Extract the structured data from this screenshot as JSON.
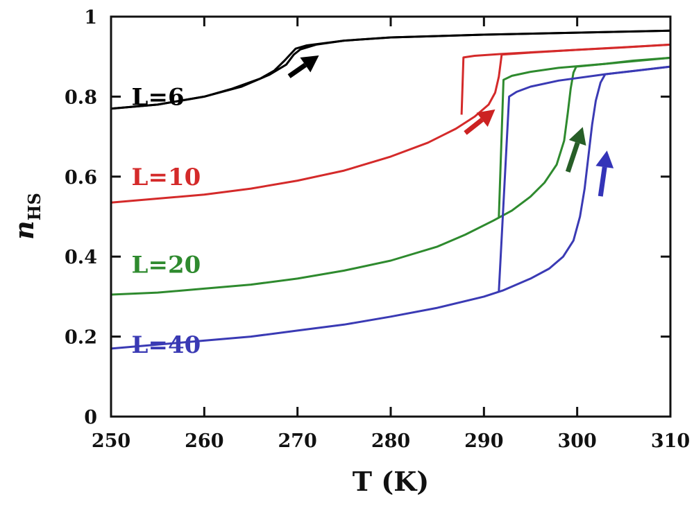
{
  "chart_data": {
    "type": "line",
    "title": "",
    "xlabel": "T (K)",
    "ylabel_main": "n",
    "ylabel_sub": "HS",
    "xlim": [
      250,
      310
    ],
    "ylim": [
      0,
      1
    ],
    "xticks": [
      250,
      260,
      270,
      280,
      290,
      300,
      310
    ],
    "xtick_labels": [
      "250",
      "260",
      "270",
      "280",
      "290",
      "300",
      "310"
    ],
    "yticks": [
      0,
      0.2,
      0.4,
      0.6,
      0.8,
      1
    ],
    "ytick_labels": [
      "0",
      "0.2",
      "0.4",
      "0.6",
      "0.8",
      "1"
    ],
    "grid": false,
    "series": [
      {
        "name": "L=6",
        "color": "#000000",
        "arrow_color": "#000000",
        "heating": [
          [
            250,
            0.77
          ],
          [
            255,
            0.78
          ],
          [
            260,
            0.8
          ],
          [
            264,
            0.825
          ],
          [
            267,
            0.855
          ],
          [
            268.8,
            0.88
          ],
          [
            269.6,
            0.905
          ],
          [
            270.3,
            0.918
          ],
          [
            272,
            0.93
          ],
          [
            275,
            0.94
          ],
          [
            280,
            0.948
          ],
          [
            290,
            0.955
          ],
          [
            300,
            0.96
          ],
          [
            310,
            0.965
          ]
        ],
        "cooling": [
          [
            310,
            0.965
          ],
          [
            300,
            0.96
          ],
          [
            290,
            0.955
          ],
          [
            280,
            0.948
          ],
          [
            275,
            0.94
          ],
          [
            271,
            0.928
          ],
          [
            269.8,
            0.92
          ],
          [
            268.6,
            0.89
          ],
          [
            267.5,
            0.865
          ],
          [
            266,
            0.845
          ],
          [
            263,
            0.82
          ],
          [
            260,
            0.8
          ],
          [
            255,
            0.78
          ],
          [
            250,
            0.77
          ]
        ],
        "arrow": [
          [
            269.1,
            0.851
          ],
          [
            272.3,
            0.903
          ]
        ],
        "label_pos": [
          252.2,
          0.8
        ]
      },
      {
        "name": "L=10",
        "color": "#d42a2a",
        "arrow_color": "#cc2222",
        "heating": [
          [
            250,
            0.535
          ],
          [
            255,
            0.545
          ],
          [
            260,
            0.555
          ],
          [
            265,
            0.57
          ],
          [
            270,
            0.59
          ],
          [
            275,
            0.615
          ],
          [
            280,
            0.65
          ],
          [
            284,
            0.685
          ],
          [
            287,
            0.72
          ],
          [
            289,
            0.75
          ],
          [
            290.5,
            0.78
          ],
          [
            291.2,
            0.81
          ],
          [
            291.6,
            0.85
          ],
          [
            291.9,
            0.905
          ],
          [
            295,
            0.91
          ],
          [
            300,
            0.917
          ],
          [
            305,
            0.923
          ],
          [
            310,
            0.93
          ]
        ],
        "cooling": [
          [
            310,
            0.93
          ],
          [
            300,
            0.917
          ],
          [
            292,
            0.907
          ],
          [
            289,
            0.902
          ],
          [
            287.8,
            0.898
          ],
          [
            287.6,
            0.755
          ]
        ],
        "arrow": [
          [
            288.0,
            0.709
          ],
          [
            291.2,
            0.768
          ]
        ],
        "label_pos": [
          252.2,
          0.6
        ]
      },
      {
        "name": "L=20",
        "color": "#2e8a2e",
        "arrow_color": "#275e27",
        "heating": [
          [
            250,
            0.305
          ],
          [
            255,
            0.31
          ],
          [
            260,
            0.32
          ],
          [
            265,
            0.33
          ],
          [
            270,
            0.345
          ],
          [
            275,
            0.365
          ],
          [
            280,
            0.39
          ],
          [
            285,
            0.425
          ],
          [
            288,
            0.455
          ],
          [
            291,
            0.49
          ],
          [
            293,
            0.515
          ],
          [
            295,
            0.55
          ],
          [
            296.5,
            0.585
          ],
          [
            297.8,
            0.63
          ],
          [
            298.6,
            0.69
          ],
          [
            299.0,
            0.76
          ],
          [
            299.3,
            0.82
          ],
          [
            299.6,
            0.86
          ],
          [
            299.9,
            0.875
          ],
          [
            303,
            0.882
          ],
          [
            306,
            0.89
          ],
          [
            310,
            0.897
          ]
        ],
        "cooling": [
          [
            310,
            0.897
          ],
          [
            303,
            0.882
          ],
          [
            298,
            0.872
          ],
          [
            295,
            0.862
          ],
          [
            293,
            0.852
          ],
          [
            292.1,
            0.842
          ],
          [
            291.6,
            0.499
          ]
        ],
        "arrow": [
          [
            299.0,
            0.612
          ],
          [
            300.6,
            0.724
          ]
        ],
        "label_pos": [
          252.2,
          0.38
        ]
      },
      {
        "name": "L=40",
        "color": "#3a3ab4",
        "arrow_color": "#3434b8",
        "heating": [
          [
            250,
            0.17
          ],
          [
            255,
            0.18
          ],
          [
            260,
            0.19
          ],
          [
            265,
            0.2
          ],
          [
            270,
            0.215
          ],
          [
            275,
            0.23
          ],
          [
            280,
            0.25
          ],
          [
            285,
            0.272
          ],
          [
            290,
            0.3
          ],
          [
            292,
            0.315
          ],
          [
            295,
            0.345
          ],
          [
            297,
            0.37
          ],
          [
            298.5,
            0.4
          ],
          [
            299.6,
            0.44
          ],
          [
            300.3,
            0.5
          ],
          [
            300.8,
            0.57
          ],
          [
            301.2,
            0.65
          ],
          [
            301.6,
            0.73
          ],
          [
            302.0,
            0.79
          ],
          [
            302.5,
            0.835
          ],
          [
            303,
            0.856
          ],
          [
            306,
            0.864
          ],
          [
            310,
            0.875
          ]
        ],
        "cooling": [
          [
            310,
            0.875
          ],
          [
            303,
            0.856
          ],
          [
            298,
            0.84
          ],
          [
            295,
            0.825
          ],
          [
            293.5,
            0.812
          ],
          [
            292.7,
            0.8
          ],
          [
            291.6,
            0.313
          ]
        ],
        "arrow": [
          [
            302.5,
            0.551
          ],
          [
            303.2,
            0.665
          ]
        ],
        "label_pos": [
          252.2,
          0.18
        ]
      }
    ]
  }
}
